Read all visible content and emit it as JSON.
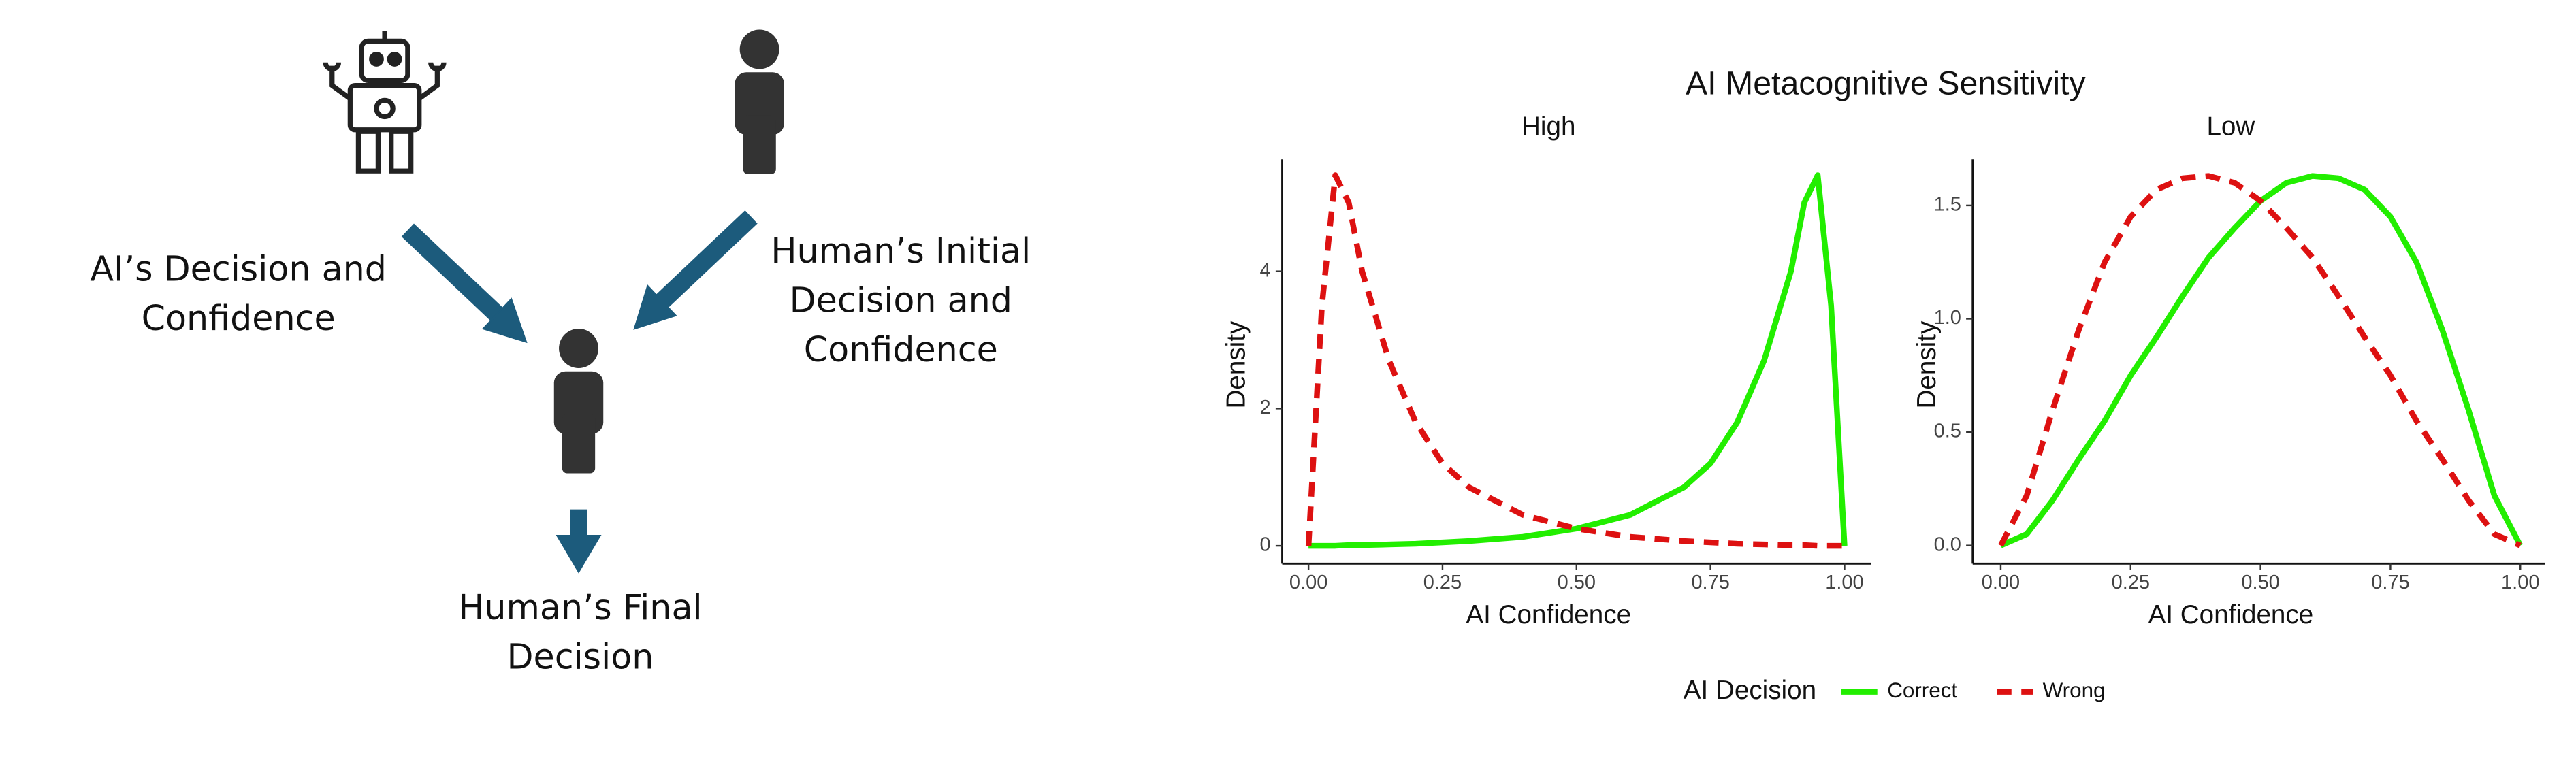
{
  "diagram": {
    "ai_label": [
      "AI’s Decision and",
      "Confidence"
    ],
    "human_label": [
      "Human’s Initial",
      "Decision and",
      "Confidence"
    ],
    "final_label": [
      "Human’s Final",
      "Decision"
    ]
  },
  "figure": {
    "title": "AI Metacognitive Sensitivity",
    "legend_title": "AI Decision"
  },
  "chart_data": [
    {
      "type": "line",
      "subtitle": "High",
      "xlabel": "AI Confidence",
      "ylabel": "Density",
      "x": [
        0,
        0.025,
        0.05,
        0.075,
        0.1,
        0.15,
        0.2,
        0.25,
        0.3,
        0.4,
        0.5,
        0.6,
        0.7,
        0.75,
        0.8,
        0.85,
        0.9,
        0.925,
        0.95,
        0.975,
        1
      ],
      "series": [
        {
          "name": "Correct",
          "color": "#22ee00",
          "linestyle": "solid",
          "values": [
            0,
            0,
            0,
            0.01,
            0.01,
            0.02,
            0.03,
            0.05,
            0.07,
            0.13,
            0.25,
            0.45,
            0.85,
            1.2,
            1.8,
            2.7,
            4.0,
            5.0,
            5.4,
            3.5,
            0
          ]
        },
        {
          "name": "Wrong",
          "color": "#dd1111",
          "linestyle": "dashed",
          "values": [
            0,
            3.5,
            5.4,
            5.0,
            4.0,
            2.7,
            1.8,
            1.2,
            0.85,
            0.45,
            0.25,
            0.13,
            0.07,
            0.05,
            0.03,
            0.02,
            0.01,
            0.01,
            0,
            0,
            0
          ]
        }
      ],
      "xlim": [
        -0.049,
        1.049
      ],
      "ylim": [
        -0.26,
        5.63
      ],
      "xticks": [
        {
          "value": 0,
          "label": "0.00"
        },
        {
          "value": 0.25,
          "label": "0.25"
        },
        {
          "value": 0.5,
          "label": "0.50"
        },
        {
          "value": 0.75,
          "label": "0.75"
        },
        {
          "value": 1,
          "label": "1.00"
        }
      ],
      "yticks": [
        0,
        2,
        4
      ]
    },
    {
      "type": "line",
      "subtitle": "Low",
      "xlabel": "AI Confidence",
      "ylabel": "Density",
      "x": [
        0,
        0.05,
        0.1,
        0.15,
        0.2,
        0.25,
        0.3,
        0.35,
        0.4,
        0.45,
        0.5,
        0.55,
        0.6,
        0.65,
        0.7,
        0.75,
        0.8,
        0.85,
        0.9,
        0.95,
        1
      ],
      "series": [
        {
          "name": "Correct",
          "color": "#22ee00",
          "linestyle": "solid",
          "values": [
            0,
            0.05,
            0.2,
            0.38,
            0.55,
            0.75,
            0.92,
            1.1,
            1.27,
            1.4,
            1.52,
            1.6,
            1.63,
            1.62,
            1.57,
            1.45,
            1.25,
            0.95,
            0.6,
            0.22,
            0
          ]
        },
        {
          "name": "Wrong",
          "color": "#dd1111",
          "linestyle": "dashed",
          "values": [
            0,
            0.22,
            0.6,
            0.95,
            1.25,
            1.45,
            1.57,
            1.62,
            1.63,
            1.6,
            1.52,
            1.4,
            1.27,
            1.1,
            0.92,
            0.75,
            0.55,
            0.38,
            0.2,
            0.05,
            0
          ]
        }
      ],
      "xlim": [
        -0.054,
        1.047
      ],
      "ylim": [
        -0.08,
        1.703
      ],
      "xticks": [
        {
          "value": 0,
          "label": "0.00"
        },
        {
          "value": 0.25,
          "label": "0.25"
        },
        {
          "value": 0.5,
          "label": "0.50"
        },
        {
          "value": 0.75,
          "label": "0.75"
        },
        {
          "value": 1,
          "label": "1.00"
        }
      ],
      "yticks": [
        {
          "value": 0,
          "label": "0.0"
        },
        {
          "value": 0.5,
          "label": "0.5"
        },
        {
          "value": 1,
          "label": "1.0"
        },
        {
          "value": 1.5,
          "label": "1.5"
        }
      ]
    }
  ]
}
